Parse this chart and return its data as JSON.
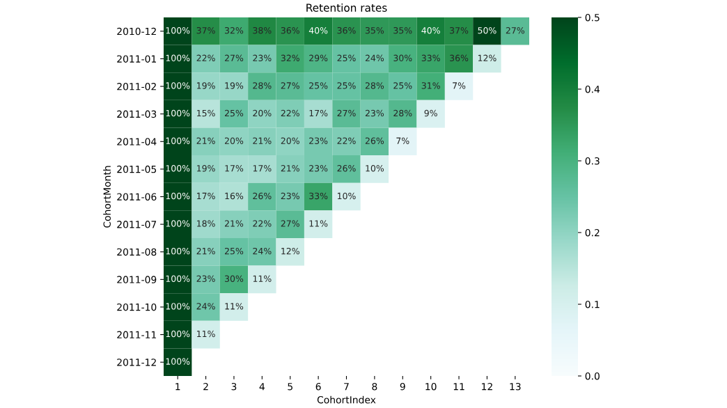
{
  "chart_data": {
    "type": "heatmap",
    "title": "Retention rates",
    "xlabel": "CohortIndex",
    "ylabel": "CohortMonth",
    "categories": [
      "1",
      "2",
      "3",
      "4",
      "5",
      "6",
      "7",
      "8",
      "9",
      "10",
      "11",
      "12",
      "13"
    ],
    "y_categories": [
      "2010-12",
      "2011-01",
      "2011-02",
      "2011-03",
      "2011-04",
      "2011-05",
      "2011-06",
      "2011-07",
      "2011-08",
      "2011-09",
      "2011-10",
      "2011-11",
      "2011-12"
    ],
    "cells": [
      [
        1.0,
        0.37,
        0.32,
        0.38,
        0.36,
        0.4,
        0.36,
        0.35,
        0.35,
        0.4,
        0.37,
        0.5,
        0.27
      ],
      [
        1.0,
        0.22,
        0.27,
        0.23,
        0.32,
        0.29,
        0.25,
        0.24,
        0.3,
        0.33,
        0.36,
        0.12,
        null
      ],
      [
        1.0,
        0.19,
        0.19,
        0.28,
        0.27,
        0.25,
        0.25,
        0.28,
        0.25,
        0.31,
        0.07,
        null,
        null
      ],
      [
        1.0,
        0.15,
        0.25,
        0.2,
        0.22,
        0.17,
        0.27,
        0.23,
        0.28,
        0.09,
        null,
        null,
        null
      ],
      [
        1.0,
        0.21,
        0.2,
        0.21,
        0.2,
        0.23,
        0.22,
        0.26,
        0.07,
        null,
        null,
        null,
        null
      ],
      [
        1.0,
        0.19,
        0.17,
        0.17,
        0.21,
        0.23,
        0.26,
        0.1,
        null,
        null,
        null,
        null,
        null
      ],
      [
        1.0,
        0.17,
        0.16,
        0.26,
        0.23,
        0.33,
        0.1,
        null,
        null,
        null,
        null,
        null,
        null
      ],
      [
        1.0,
        0.18,
        0.21,
        0.22,
        0.27,
        0.11,
        null,
        null,
        null,
        null,
        null,
        null,
        null
      ],
      [
        1.0,
        0.21,
        0.25,
        0.24,
        0.12,
        null,
        null,
        null,
        null,
        null,
        null,
        null,
        null
      ],
      [
        1.0,
        0.23,
        0.3,
        0.11,
        null,
        null,
        null,
        null,
        null,
        null,
        null,
        null,
        null
      ],
      [
        1.0,
        0.24,
        0.11,
        null,
        null,
        null,
        null,
        null,
        null,
        null,
        null,
        null,
        null
      ],
      [
        1.0,
        0.11,
        null,
        null,
        null,
        null,
        null,
        null,
        null,
        null,
        null,
        null,
        null
      ],
      [
        1.0,
        null,
        null,
        null,
        null,
        null,
        null,
        null,
        null,
        null,
        null,
        null,
        null
      ]
    ],
    "cell_labels": [
      [
        "100%",
        "37%",
        "32%",
        "38%",
        "36%",
        "40%",
        "36%",
        "35%",
        "35%",
        "40%",
        "37%",
        "50%",
        "27%"
      ],
      [
        "100%",
        "22%",
        "27%",
        "23%",
        "32%",
        "29%",
        "25%",
        "24%",
        "30%",
        "33%",
        "36%",
        "12%",
        null
      ],
      [
        "100%",
        "19%",
        "19%",
        "28%",
        "27%",
        "25%",
        "25%",
        "28%",
        "25%",
        "31%",
        "7%",
        null,
        null
      ],
      [
        "100%",
        "15%",
        "25%",
        "20%",
        "22%",
        "17%",
        "27%",
        "23%",
        "28%",
        "9%",
        null,
        null,
        null
      ],
      [
        "100%",
        "21%",
        "20%",
        "21%",
        "20%",
        "23%",
        "22%",
        "26%",
        "7%",
        null,
        null,
        null,
        null
      ],
      [
        "100%",
        "19%",
        "17%",
        "17%",
        "21%",
        "23%",
        "26%",
        "10%",
        null,
        null,
        null,
        null,
        null
      ],
      [
        "100%",
        "17%",
        "16%",
        "26%",
        "23%",
        "33%",
        "10%",
        null,
        null,
        null,
        null,
        null,
        null
      ],
      [
        "100%",
        "18%",
        "21%",
        "22%",
        "27%",
        "11%",
        null,
        null,
        null,
        null,
        null,
        null,
        null
      ],
      [
        "100%",
        "21%",
        "25%",
        "24%",
        "12%",
        null,
        null,
        null,
        null,
        null,
        null,
        null,
        null
      ],
      [
        "100%",
        "23%",
        "30%",
        "11%",
        null,
        null,
        null,
        null,
        null,
        null,
        null,
        null,
        null
      ],
      [
        "100%",
        "24%",
        "11%",
        null,
        null,
        null,
        null,
        null,
        null,
        null,
        null,
        null,
        null
      ],
      [
        "100%",
        "11%",
        null,
        null,
        null,
        null,
        null,
        null,
        null,
        null,
        null,
        null,
        null
      ],
      [
        "100%",
        null,
        null,
        null,
        null,
        null,
        null,
        null,
        null,
        null,
        null,
        null,
        null
      ]
    ],
    "clim": [
      0,
      0.5
    ],
    "cticks": [
      {
        "value": 0,
        "label": "0.0"
      },
      {
        "value": 0.1,
        "label": "0.1"
      },
      {
        "value": 0.2,
        "label": "0.2"
      },
      {
        "value": 0.3,
        "label": "0.3"
      },
      {
        "value": 0.4,
        "label": "0.4"
      },
      {
        "value": 0.5,
        "label": "0.5"
      }
    ],
    "grid": false
  }
}
